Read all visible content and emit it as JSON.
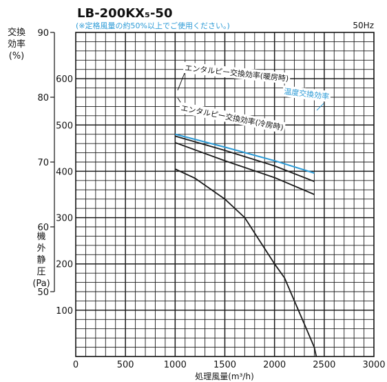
{
  "chart_data": {
    "type": "line",
    "title": "LB-200KX₅-50",
    "subtitle": "(※定格風量の約50%以上でご使用ください。)",
    "frequency": "50Hz",
    "xlabel": "処理風量(m³/h)",
    "xlim": [
      0,
      3000
    ],
    "x_ticks": [
      "0",
      "500",
      "1000",
      "1500",
      "2000",
      "2500",
      "3000"
    ],
    "efficiency_axis": {
      "label": [
        "交換",
        "効率",
        "(%)"
      ],
      "range": [
        40,
        90
      ],
      "ticks": [
        "90",
        "80",
        "70",
        "60",
        "50"
      ]
    },
    "pressure_axis": {
      "label": [
        "機",
        "外",
        "静",
        "圧",
        "(Pa)"
      ],
      "range": [
        0,
        700
      ],
      "ticks": [
        "600",
        "500",
        "400",
        "300",
        "200",
        "100"
      ]
    },
    "grid": true,
    "colors": {
      "grid": "#1a1a1a",
      "temperature_exchange": "#2b9ad6",
      "enthalpy": "#1a1a1a"
    },
    "series": [
      {
        "name": "エンタルピー交換効率(暖房時)",
        "axis": "efficiency",
        "x": [
          1000,
          1500,
          2000,
          2400
        ],
        "y": [
          74.0,
          71.8,
          69.4,
          67.0
        ]
      },
      {
        "name": "温度交換効率",
        "axis": "efficiency",
        "x": [
          1000,
          1500,
          2000,
          2400
        ],
        "y": [
          74.3,
          72.3,
          70.2,
          68.3
        ]
      },
      {
        "name": "エンタルピー交換効率(冷房時)",
        "axis": "efficiency",
        "x": [
          1000,
          1500,
          2000,
          2400
        ],
        "y": [
          73.0,
          70.2,
          67.6,
          65.0
        ]
      },
      {
        "name": "",
        "axis": "pressure",
        "x": [
          1000,
          1200,
          1500,
          1700,
          1850,
          2000,
          2100,
          2200,
          2300,
          2400,
          2420
        ],
        "y": [
          405,
          385,
          340,
          300,
          250,
          200,
          170,
          120,
          70,
          20,
          0
        ]
      }
    ]
  }
}
